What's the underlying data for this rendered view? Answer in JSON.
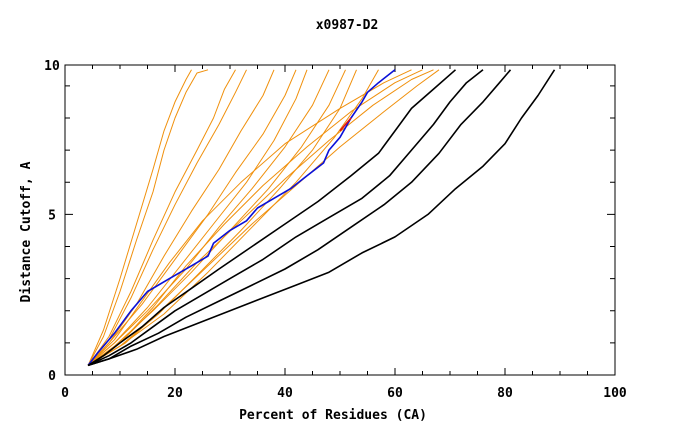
{
  "chart_data": {
    "type": "line",
    "title": "x0987-D2",
    "xlabel": "Percent of Residues (CA)",
    "ylabel": "Distance Cutoff, A",
    "xlim": [
      0,
      100
    ],
    "ylim": [
      0,
      10
    ],
    "xticks": [
      "0",
      "20",
      "40",
      "60",
      "80",
      "100"
    ],
    "yticks": [
      "0",
      "5",
      "10"
    ],
    "grid": false,
    "legend": "none",
    "colors": {
      "orange": "#f0900c",
      "blue": "#0a10d8",
      "black": "#000000",
      "red": "#e01010"
    },
    "series": [
      {
        "color": "orange",
        "points": [
          [
            4.2,
            0.3
          ],
          [
            7,
            1.2
          ],
          [
            10,
            2.6
          ],
          [
            13,
            4.2
          ],
          [
            16,
            5.7
          ],
          [
            18,
            7.0
          ],
          [
            20,
            8.0
          ],
          [
            22,
            8.8
          ],
          [
            24,
            9.4
          ],
          [
            26,
            9.5
          ]
        ]
      },
      {
        "color": "orange",
        "points": [
          [
            4.2,
            0.3
          ],
          [
            7,
            1.4
          ],
          [
            10,
            3.0
          ],
          [
            13,
            4.7
          ],
          [
            16,
            6.4
          ],
          [
            18,
            7.6
          ],
          [
            20,
            8.5
          ],
          [
            22,
            9.2
          ],
          [
            23,
            9.5
          ]
        ]
      },
      {
        "color": "orange",
        "points": [
          [
            4.2,
            0.3
          ],
          [
            8,
            1.2
          ],
          [
            12,
            2.6
          ],
          [
            16,
            4.2
          ],
          [
            20,
            5.7
          ],
          [
            24,
            7.0
          ],
          [
            27,
            8.0
          ],
          [
            29,
            8.9
          ],
          [
            31,
            9.5
          ]
        ]
      },
      {
        "color": "orange",
        "points": [
          [
            4.2,
            0.3
          ],
          [
            8,
            1.1
          ],
          [
            12,
            2.4
          ],
          [
            16,
            3.9
          ],
          [
            20,
            5.3
          ],
          [
            24,
            6.6
          ],
          [
            28,
            7.8
          ],
          [
            31,
            8.8
          ],
          [
            33,
            9.5
          ]
        ]
      },
      {
        "color": "orange",
        "points": [
          [
            4.2,
            0.3
          ],
          [
            8,
            1.0
          ],
          [
            13,
            2.2
          ],
          [
            18,
            3.7
          ],
          [
            23,
            5.1
          ],
          [
            28,
            6.4
          ],
          [
            32,
            7.6
          ],
          [
            36,
            8.7
          ],
          [
            38,
            9.5
          ]
        ]
      },
      {
        "color": "orange",
        "points": [
          [
            4.2,
            0.3
          ],
          [
            8,
            1.0
          ],
          [
            14,
            2.2
          ],
          [
            20,
            3.6
          ],
          [
            26,
            5.0
          ],
          [
            31,
            6.3
          ],
          [
            36,
            7.5
          ],
          [
            40,
            8.7
          ],
          [
            42,
            9.5
          ]
        ]
      },
      {
        "color": "orange",
        "points": [
          [
            4.2,
            0.3
          ],
          [
            9,
            1.0
          ],
          [
            15,
            2.1
          ],
          [
            21,
            3.4
          ],
          [
            27,
            4.7
          ],
          [
            33,
            6.0
          ],
          [
            38,
            7.3
          ],
          [
            42,
            8.6
          ],
          [
            44,
            9.5
          ]
        ]
      },
      {
        "color": "orange",
        "points": [
          [
            4.2,
            0.3
          ],
          [
            9,
            1.0
          ],
          [
            15,
            2.0
          ],
          [
            22,
            3.3
          ],
          [
            28,
            4.6
          ],
          [
            34,
            5.8
          ],
          [
            40,
            7.1
          ],
          [
            45,
            8.4
          ],
          [
            48,
            9.5
          ]
        ]
      },
      {
        "color": "orange",
        "points": [
          [
            4.2,
            0.3
          ],
          [
            9,
            0.9
          ],
          [
            16,
            2.0
          ],
          [
            23,
            3.2
          ],
          [
            30,
            4.5
          ],
          [
            37,
            5.8
          ],
          [
            43,
            7.1
          ],
          [
            48,
            8.4
          ],
          [
            51,
            9.5
          ]
        ]
      },
      {
        "color": "orange",
        "points": [
          [
            4.2,
            0.3
          ],
          [
            10,
            0.9
          ],
          [
            17,
            1.9
          ],
          [
            24,
            3.1
          ],
          [
            32,
            4.5
          ],
          [
            39,
            5.8
          ],
          [
            45,
            7.0
          ],
          [
            50,
            8.3
          ],
          [
            53,
            9.5
          ]
        ]
      },
      {
        "color": "orange",
        "points": [
          [
            4.2,
            0.3
          ],
          [
            10,
            0.9
          ],
          [
            18,
            1.9
          ],
          [
            26,
            3.2
          ],
          [
            34,
            4.6
          ],
          [
            42,
            6.0
          ],
          [
            49,
            7.4
          ],
          [
            54,
            8.6
          ],
          [
            57,
            9.5
          ]
        ]
      },
      {
        "color": "orange",
        "points": [
          [
            4.2,
            0.3
          ],
          [
            9,
            1.1
          ],
          [
            14,
            2.3
          ],
          [
            19,
            3.5
          ],
          [
            25,
            4.8
          ],
          [
            32,
            6.0
          ],
          [
            40,
            7.2
          ],
          [
            50,
            8.3
          ],
          [
            58,
            9.1
          ],
          [
            63,
            9.5
          ]
        ]
      },
      {
        "color": "orange",
        "points": [
          [
            4.2,
            0.3
          ],
          [
            10,
            1.0
          ],
          [
            16,
            2.1
          ],
          [
            22,
            3.4
          ],
          [
            29,
            4.7
          ],
          [
            36,
            5.9
          ],
          [
            44,
            7.1
          ],
          [
            52,
            8.2
          ],
          [
            60,
            9.1
          ],
          [
            65,
            9.5
          ]
        ]
      },
      {
        "color": "orange",
        "points": [
          [
            4.2,
            0.3
          ],
          [
            10,
            1.0
          ],
          [
            17,
            2.2
          ],
          [
            24,
            3.5
          ],
          [
            32,
            4.8
          ],
          [
            40,
            6.1
          ],
          [
            48,
            7.3
          ],
          [
            56,
            8.4
          ],
          [
            63,
            9.2
          ],
          [
            67,
            9.5
          ]
        ]
      },
      {
        "color": "orange",
        "points": [
          [
            4.2,
            0.3
          ],
          [
            11,
            1.0
          ],
          [
            18,
            2.1
          ],
          [
            26,
            3.4
          ],
          [
            34,
            4.7
          ],
          [
            42,
            5.9
          ],
          [
            50,
            7.1
          ],
          [
            58,
            8.2
          ],
          [
            64,
            9.0
          ],
          [
            68,
            9.5
          ]
        ]
      },
      {
        "color": "blue",
        "points": [
          [
            4.2,
            0.3
          ],
          [
            6,
            0.7
          ],
          [
            9,
            1.3
          ],
          [
            12,
            2.0
          ],
          [
            15,
            2.6
          ],
          [
            19,
            3.0
          ],
          [
            23,
            3.4
          ],
          [
            26,
            3.7
          ],
          [
            27,
            4.1
          ],
          [
            30,
            4.5
          ],
          [
            33,
            4.8
          ],
          [
            35,
            5.2
          ],
          [
            38,
            5.5
          ],
          [
            41,
            5.8
          ],
          [
            44,
            6.2
          ],
          [
            47,
            6.6
          ],
          [
            48,
            7.0
          ],
          [
            50,
            7.4
          ],
          [
            52,
            8.0
          ],
          [
            54,
            8.5
          ],
          [
            55,
            8.8
          ],
          [
            57,
            9.1
          ],
          [
            60,
            9.5
          ]
        ]
      },
      {
        "color": "black",
        "points": [
          [
            4.2,
            0.3
          ],
          [
            7,
            0.6
          ],
          [
            10,
            1.0
          ],
          [
            14,
            1.5
          ],
          [
            18,
            2.1
          ],
          [
            23,
            2.7
          ],
          [
            28,
            3.3
          ],
          [
            34,
            4.0
          ],
          [
            40,
            4.7
          ],
          [
            46,
            5.4
          ],
          [
            52,
            6.2
          ],
          [
            57,
            6.9
          ],
          [
            60,
            7.6
          ],
          [
            63,
            8.3
          ],
          [
            67,
            8.9
          ],
          [
            71,
            9.5
          ]
        ]
      },
      {
        "color": "black",
        "points": [
          [
            4.2,
            0.3
          ],
          [
            8,
            0.6
          ],
          [
            12,
            1.0
          ],
          [
            16,
            1.5
          ],
          [
            20,
            2.0
          ],
          [
            25,
            2.5
          ],
          [
            30,
            3.0
          ],
          [
            36,
            3.6
          ],
          [
            42,
            4.3
          ],
          [
            48,
            4.9
          ],
          [
            54,
            5.5
          ],
          [
            59,
            6.2
          ],
          [
            63,
            7.0
          ],
          [
            67,
            7.8
          ],
          [
            70,
            8.5
          ],
          [
            73,
            9.1
          ],
          [
            76,
            9.5
          ]
        ]
      },
      {
        "color": "black",
        "points": [
          [
            4.2,
            0.3
          ],
          [
            8,
            0.5
          ],
          [
            12,
            0.9
          ],
          [
            17,
            1.3
          ],
          [
            22,
            1.8
          ],
          [
            28,
            2.3
          ],
          [
            34,
            2.8
          ],
          [
            40,
            3.3
          ],
          [
            46,
            3.9
          ],
          [
            52,
            4.6
          ],
          [
            58,
            5.3
          ],
          [
            63,
            6.0
          ],
          [
            68,
            6.9
          ],
          [
            72,
            7.8
          ],
          [
            76,
            8.5
          ],
          [
            79,
            9.1
          ],
          [
            81,
            9.5
          ]
        ]
      },
      {
        "color": "black",
        "points": [
          [
            4.2,
            0.3
          ],
          [
            8,
            0.5
          ],
          [
            13,
            0.8
          ],
          [
            18,
            1.2
          ],
          [
            24,
            1.6
          ],
          [
            30,
            2.0
          ],
          [
            36,
            2.4
          ],
          [
            42,
            2.8
          ],
          [
            48,
            3.2
          ],
          [
            54,
            3.8
          ],
          [
            60,
            4.3
          ],
          [
            66,
            5.0
          ],
          [
            71,
            5.8
          ],
          [
            76,
            6.5
          ],
          [
            80,
            7.2
          ],
          [
            83,
            8.0
          ],
          [
            86,
            8.7
          ],
          [
            89,
            9.5
          ]
        ]
      }
    ]
  }
}
